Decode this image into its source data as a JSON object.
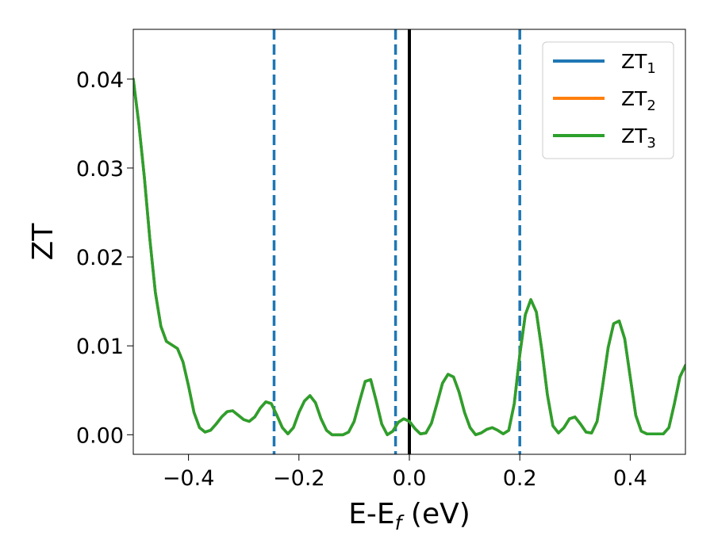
{
  "chart_data": {
    "type": "line",
    "xlabel": {
      "main": "E-E",
      "sub": "f",
      "tail": " (eV)"
    },
    "ylabel": "ZT",
    "xlim": [
      -0.5,
      0.5
    ],
    "ylim": [
      -0.0022,
      0.0456
    ],
    "xticks": [
      -0.4,
      -0.2,
      0.0,
      0.2,
      0.4
    ],
    "xtick_labels": [
      "−0.4",
      "−0.2",
      "0.0",
      "0.2",
      "0.4"
    ],
    "yticks": [
      0.0,
      0.01,
      0.02,
      0.03,
      0.04
    ],
    "ytick_labels": [
      "0.00",
      "0.01",
      "0.02",
      "0.03",
      "0.04"
    ],
    "grid": false,
    "legend_position": "top-right",
    "series": [
      {
        "name": "ZT",
        "name_sub": "1",
        "color": "#1f77b4",
        "x": [
          -0.5,
          -0.49,
          -0.48,
          -0.47,
          -0.46,
          -0.45,
          -0.44,
          -0.43,
          -0.42,
          -0.41,
          -0.4,
          -0.39,
          -0.38,
          -0.37,
          -0.36,
          -0.35,
          -0.34,
          -0.33,
          -0.32,
          -0.31,
          -0.3,
          -0.29,
          -0.28,
          -0.27,
          -0.26,
          -0.25,
          -0.24,
          -0.23,
          -0.22,
          -0.21,
          -0.2,
          -0.19,
          -0.18,
          -0.17,
          -0.16,
          -0.15,
          -0.14,
          -0.13,
          -0.12,
          -0.11,
          -0.1,
          -0.09,
          -0.08,
          -0.07,
          -0.06,
          -0.05,
          -0.04,
          -0.03,
          -0.02,
          -0.01,
          0.0,
          0.01,
          0.02,
          0.03,
          0.04,
          0.05,
          0.06,
          0.07,
          0.08,
          0.09,
          0.1,
          0.11,
          0.12,
          0.13,
          0.14,
          0.15,
          0.16,
          0.17,
          0.18,
          0.19,
          0.2,
          0.21,
          0.22,
          0.23,
          0.24,
          0.25,
          0.26,
          0.27,
          0.28,
          0.29,
          0.3,
          0.31,
          0.32,
          0.33,
          0.34,
          0.35,
          0.36,
          0.37,
          0.38,
          0.39,
          0.4,
          0.41,
          0.42,
          0.43,
          0.44,
          0.45,
          0.46,
          0.47,
          0.48,
          0.49,
          0.5
        ],
        "y": [
          0.04,
          0.035,
          0.029,
          0.022,
          0.016,
          0.0122,
          0.0105,
          0.0101,
          0.0097,
          0.0082,
          0.0055,
          0.0025,
          0.0008,
          0.0003,
          0.0005,
          0.0012,
          0.002,
          0.0026,
          0.0027,
          0.0022,
          0.0017,
          0.0015,
          0.002,
          0.003,
          0.0037,
          0.0035,
          0.0022,
          0.0008,
          0.0001,
          0.0008,
          0.0025,
          0.0038,
          0.0044,
          0.0036,
          0.0018,
          0.0005,
          0.0,
          0.0,
          0.0,
          0.0003,
          0.0015,
          0.0038,
          0.006,
          0.0062,
          0.0038,
          0.0012,
          0.0,
          0.0004,
          0.0014,
          0.0018,
          0.0015,
          0.0007,
          0.0001,
          0.0002,
          0.0013,
          0.0035,
          0.0058,
          0.0068,
          0.0065,
          0.0048,
          0.0025,
          0.0008,
          0.0,
          0.0002,
          0.0006,
          0.0008,
          0.0005,
          0.0001,
          0.0005,
          0.0035,
          0.009,
          0.0135,
          0.0152,
          0.0138,
          0.0095,
          0.0045,
          0.001,
          0.0002,
          0.0008,
          0.0018,
          0.002,
          0.0012,
          0.0003,
          0.0002,
          0.0015,
          0.0055,
          0.0098,
          0.0125,
          0.0128,
          0.0108,
          0.0065,
          0.0022,
          0.0004,
          0.0001,
          0.0001,
          0.0001,
          0.0001,
          0.0008,
          0.0035,
          0.0065,
          0.0078
        ]
      },
      {
        "name": "ZT",
        "name_sub": "2",
        "color": "#ff7f0e",
        "x": [
          -0.5,
          -0.49,
          -0.48,
          -0.47,
          -0.46,
          -0.45,
          -0.44,
          -0.43,
          -0.42,
          -0.41,
          -0.4,
          -0.39,
          -0.38,
          -0.37,
          -0.36,
          -0.35,
          -0.34,
          -0.33,
          -0.32,
          -0.31,
          -0.3,
          -0.29,
          -0.28,
          -0.27,
          -0.26,
          -0.25,
          -0.24,
          -0.23,
          -0.22,
          -0.21,
          -0.2,
          -0.19,
          -0.18,
          -0.17,
          -0.16,
          -0.15,
          -0.14,
          -0.13,
          -0.12,
          -0.11,
          -0.1,
          -0.09,
          -0.08,
          -0.07,
          -0.06,
          -0.05,
          -0.04,
          -0.03,
          -0.02,
          -0.01,
          0.0,
          0.01,
          0.02,
          0.03,
          0.04,
          0.05,
          0.06,
          0.07,
          0.08,
          0.09,
          0.1,
          0.11,
          0.12,
          0.13,
          0.14,
          0.15,
          0.16,
          0.17,
          0.18,
          0.19,
          0.2,
          0.21,
          0.22,
          0.23,
          0.24,
          0.25,
          0.26,
          0.27,
          0.28,
          0.29,
          0.3,
          0.31,
          0.32,
          0.33,
          0.34,
          0.35,
          0.36,
          0.37,
          0.38,
          0.39,
          0.4,
          0.41,
          0.42,
          0.43,
          0.44,
          0.45,
          0.46,
          0.47,
          0.48,
          0.49,
          0.5
        ],
        "y": [
          0.04,
          0.035,
          0.029,
          0.022,
          0.016,
          0.0122,
          0.0105,
          0.0101,
          0.0097,
          0.0082,
          0.0055,
          0.0025,
          0.0008,
          0.0003,
          0.0005,
          0.0012,
          0.002,
          0.0026,
          0.0027,
          0.0022,
          0.0017,
          0.0015,
          0.002,
          0.003,
          0.0037,
          0.0035,
          0.0022,
          0.0008,
          0.0001,
          0.0008,
          0.0025,
          0.0038,
          0.0044,
          0.0036,
          0.0018,
          0.0005,
          0.0,
          0.0,
          0.0,
          0.0003,
          0.0015,
          0.0038,
          0.006,
          0.0062,
          0.0038,
          0.0012,
          0.0,
          0.0004,
          0.0014,
          0.0018,
          0.0015,
          0.0007,
          0.0001,
          0.0002,
          0.0013,
          0.0035,
          0.0058,
          0.0068,
          0.0065,
          0.0048,
          0.0025,
          0.0008,
          0.0,
          0.0002,
          0.0006,
          0.0008,
          0.0005,
          0.0001,
          0.0005,
          0.0035,
          0.009,
          0.0135,
          0.0152,
          0.0138,
          0.0095,
          0.0045,
          0.001,
          0.0002,
          0.0008,
          0.0018,
          0.002,
          0.0012,
          0.0003,
          0.0002,
          0.0015,
          0.0055,
          0.0098,
          0.0125,
          0.0128,
          0.0108,
          0.0065,
          0.0022,
          0.0004,
          0.0001,
          0.0001,
          0.0001,
          0.0001,
          0.0008,
          0.0035,
          0.0065,
          0.0078
        ]
      },
      {
        "name": "ZT",
        "name_sub": "3",
        "color": "#2ca02c",
        "x": [
          -0.5,
          -0.49,
          -0.48,
          -0.47,
          -0.46,
          -0.45,
          -0.44,
          -0.43,
          -0.42,
          -0.41,
          -0.4,
          -0.39,
          -0.38,
          -0.37,
          -0.36,
          -0.35,
          -0.34,
          -0.33,
          -0.32,
          -0.31,
          -0.3,
          -0.29,
          -0.28,
          -0.27,
          -0.26,
          -0.25,
          -0.24,
          -0.23,
          -0.22,
          -0.21,
          -0.2,
          -0.19,
          -0.18,
          -0.17,
          -0.16,
          -0.15,
          -0.14,
          -0.13,
          -0.12,
          -0.11,
          -0.1,
          -0.09,
          -0.08,
          -0.07,
          -0.06,
          -0.05,
          -0.04,
          -0.03,
          -0.02,
          -0.01,
          0.0,
          0.01,
          0.02,
          0.03,
          0.04,
          0.05,
          0.06,
          0.07,
          0.08,
          0.09,
          0.1,
          0.11,
          0.12,
          0.13,
          0.14,
          0.15,
          0.16,
          0.17,
          0.18,
          0.19,
          0.2,
          0.21,
          0.22,
          0.23,
          0.24,
          0.25,
          0.26,
          0.27,
          0.28,
          0.29,
          0.3,
          0.31,
          0.32,
          0.33,
          0.34,
          0.35,
          0.36,
          0.37,
          0.38,
          0.39,
          0.4,
          0.41,
          0.42,
          0.43,
          0.44,
          0.45,
          0.46,
          0.47,
          0.48,
          0.49,
          0.5
        ],
        "y": [
          0.04,
          0.035,
          0.029,
          0.022,
          0.016,
          0.0122,
          0.0105,
          0.0101,
          0.0097,
          0.0082,
          0.0055,
          0.0025,
          0.0008,
          0.0003,
          0.0005,
          0.0012,
          0.002,
          0.0026,
          0.0027,
          0.0022,
          0.0017,
          0.0015,
          0.002,
          0.003,
          0.0037,
          0.0035,
          0.0022,
          0.0008,
          0.0001,
          0.0008,
          0.0025,
          0.0038,
          0.0044,
          0.0036,
          0.0018,
          0.0005,
          0.0,
          0.0,
          0.0,
          0.0003,
          0.0015,
          0.0038,
          0.006,
          0.0062,
          0.0038,
          0.0012,
          0.0,
          0.0004,
          0.0014,
          0.0018,
          0.0015,
          0.0007,
          0.0001,
          0.0002,
          0.0013,
          0.0035,
          0.0058,
          0.0068,
          0.0065,
          0.0048,
          0.0025,
          0.0008,
          0.0,
          0.0002,
          0.0006,
          0.0008,
          0.0005,
          0.0001,
          0.0005,
          0.0035,
          0.009,
          0.0135,
          0.0152,
          0.0138,
          0.0095,
          0.0045,
          0.001,
          0.0002,
          0.0008,
          0.0018,
          0.002,
          0.0012,
          0.0003,
          0.0002,
          0.0015,
          0.0055,
          0.0098,
          0.0125,
          0.0128,
          0.0108,
          0.0065,
          0.0022,
          0.0004,
          0.0001,
          0.0001,
          0.0001,
          0.0001,
          0.0008,
          0.0035,
          0.0065,
          0.0078
        ]
      }
    ],
    "reference_lines": [
      {
        "x": -0.245,
        "style": "dashed",
        "color": "#1f77b4"
      },
      {
        "x": -0.025,
        "style": "dashed",
        "color": "#1f77b4"
      },
      {
        "x": 0.2,
        "style": "dashed",
        "color": "#1f77b4"
      },
      {
        "x": 0.0,
        "style": "solid",
        "color": "#000000"
      }
    ]
  }
}
